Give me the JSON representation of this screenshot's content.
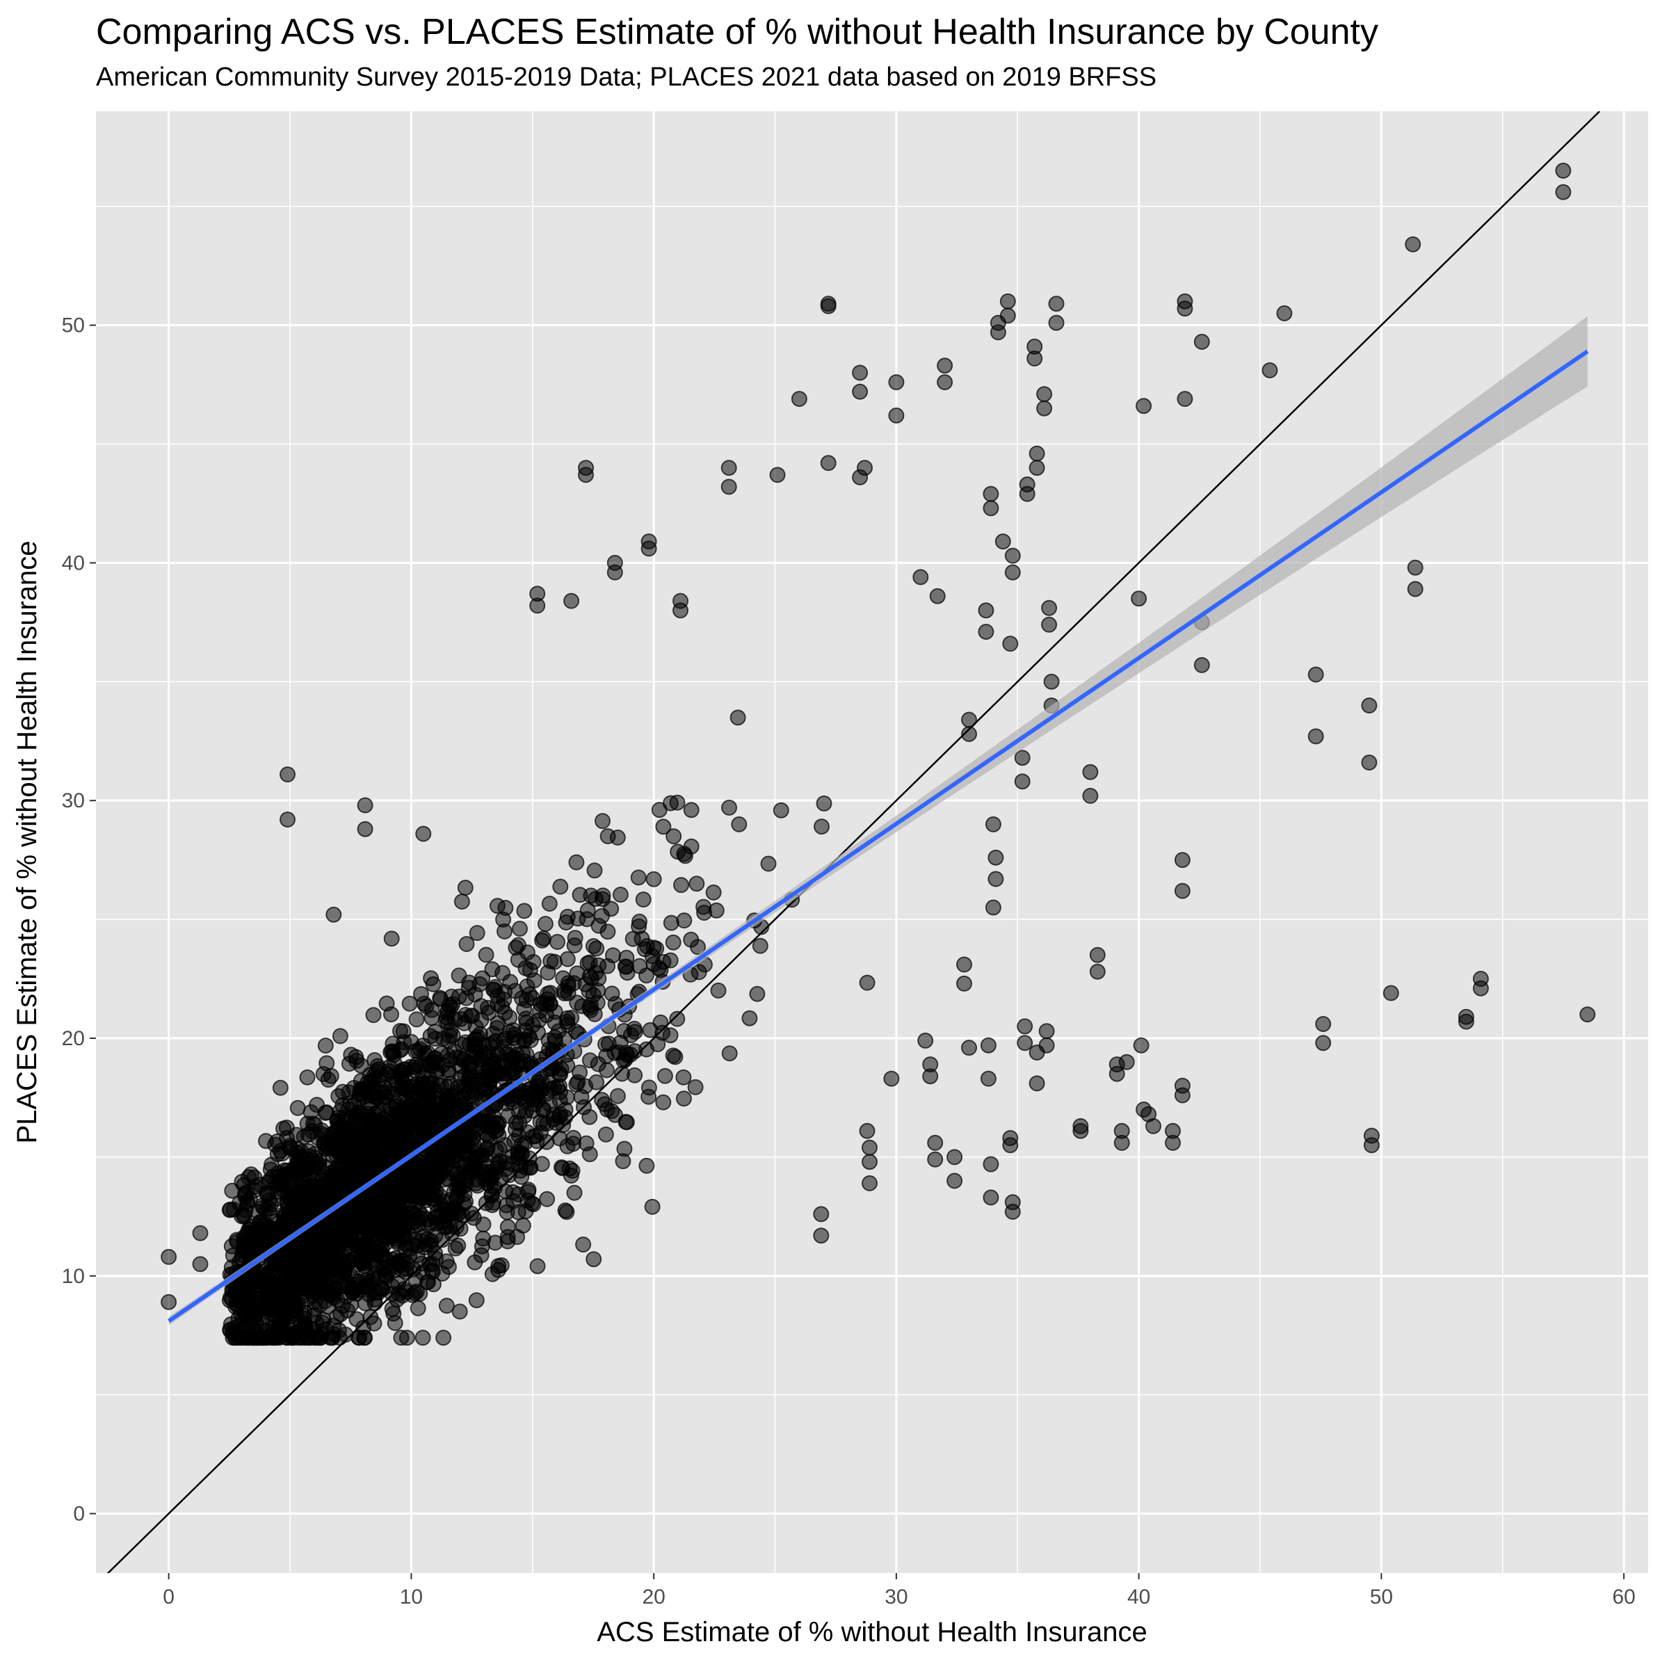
{
  "chart_data": {
    "type": "scatter",
    "title": "Comparing ACS vs. PLACES Estimate of % without Health Insurance by County",
    "subtitle": "American Community Survey 2015-2019 Data; PLACES 2021 data based on 2019 BRFSS",
    "xlabel": "ACS Estimate of % without Health Insurance",
    "ylabel": "PLACES Estimate of % without Health Insurance",
    "xlim": [
      -3,
      61
    ],
    "ylim": [
      -2.5,
      59
    ],
    "xticks": [
      0,
      10,
      20,
      30,
      40,
      50,
      60
    ],
    "yticks": [
      0,
      10,
      20,
      30,
      40,
      50
    ],
    "grid": true,
    "background_color": "#e5e5e5",
    "grid_color": "#ffffff",
    "point_color": "#000000",
    "point_alpha": 0.5,
    "reference_line": {
      "type": "identity",
      "slope": 1,
      "intercept": 0,
      "color": "#000000"
    },
    "fit_line": {
      "type": "linear",
      "x": [
        0,
        58.5
      ],
      "y": [
        8.1,
        48.9
      ],
      "color": "#3366ff",
      "ci_color": "#b3b3b3"
    },
    "cluster": {
      "n": 2800,
      "x_range": [
        2.5,
        33
      ],
      "slope": 0.75,
      "intercept": 7.4,
      "spread": 3.2
    },
    "outliers": [
      [
        57.5,
        56.5
      ],
      [
        57.5,
        55.6
      ],
      [
        51.3,
        53.4
      ],
      [
        45.4,
        48.1
      ],
      [
        46.0,
        50.5
      ],
      [
        42.6,
        49.3
      ],
      [
        41.9,
        51.0
      ],
      [
        41.9,
        50.7
      ],
      [
        41.9,
        46.9
      ],
      [
        40.2,
        46.6
      ],
      [
        42.6,
        37.5
      ],
      [
        42.6,
        35.7
      ],
      [
        40.0,
        38.5
      ],
      [
        51.4,
        39.8
      ],
      [
        51.4,
        38.9
      ],
      [
        47.3,
        35.3
      ],
      [
        47.3,
        32.7
      ],
      [
        49.5,
        34.0
      ],
      [
        49.5,
        31.6
      ],
      [
        58.5,
        21.0
      ],
      [
        54.1,
        22.5
      ],
      [
        54.1,
        22.1
      ],
      [
        53.5,
        20.9
      ],
      [
        53.5,
        20.7
      ],
      [
        50.4,
        21.9
      ],
      [
        47.6,
        20.6
      ],
      [
        47.6,
        19.8
      ],
      [
        49.6,
        15.9
      ],
      [
        49.6,
        15.5
      ],
      [
        41.8,
        27.5
      ],
      [
        41.8,
        26.2
      ],
      [
        40.1,
        19.7
      ],
      [
        39.1,
        18.9
      ],
      [
        39.1,
        18.5
      ],
      [
        39.5,
        19.0
      ],
      [
        40.2,
        17.0
      ],
      [
        40.4,
        16.8
      ],
      [
        40.6,
        16.3
      ],
      [
        41.4,
        16.1
      ],
      [
        41.4,
        15.6
      ],
      [
        41.8,
        17.6
      ],
      [
        41.8,
        18.0
      ],
      [
        39.3,
        16.1
      ],
      [
        39.3,
        15.6
      ],
      [
        37.6,
        16.3
      ],
      [
        37.6,
        16.1
      ],
      [
        38.3,
        23.5
      ],
      [
        38.3,
        22.8
      ],
      [
        38.0,
        31.2
      ],
      [
        38.0,
        30.2
      ],
      [
        34.6,
        51.0
      ],
      [
        34.6,
        50.4
      ],
      [
        34.2,
        50.1
      ],
      [
        34.2,
        49.7
      ],
      [
        36.6,
        50.9
      ],
      [
        36.6,
        50.1
      ],
      [
        35.7,
        49.1
      ],
      [
        35.7,
        48.6
      ],
      [
        36.1,
        47.1
      ],
      [
        36.1,
        46.5
      ],
      [
        35.8,
        44.6
      ],
      [
        35.8,
        44.0
      ],
      [
        35.4,
        43.3
      ],
      [
        35.4,
        42.9
      ],
      [
        33.9,
        42.9
      ],
      [
        33.9,
        42.3
      ],
      [
        34.4,
        40.9
      ],
      [
        34.8,
        40.3
      ],
      [
        34.8,
        39.6
      ],
      [
        36.3,
        38.1
      ],
      [
        36.3,
        37.4
      ],
      [
        33.7,
        38.0
      ],
      [
        33.7,
        37.1
      ],
      [
        34.7,
        36.6
      ],
      [
        36.4,
        35.0
      ],
      [
        36.4,
        34.0
      ],
      [
        33.0,
        33.4
      ],
      [
        33.0,
        32.8
      ],
      [
        35.2,
        31.8
      ],
      [
        35.2,
        30.8
      ],
      [
        34.1,
        27.6
      ],
      [
        34.1,
        26.7
      ],
      [
        34.0,
        25.5
      ],
      [
        34.0,
        29.0
      ],
      [
        32.8,
        23.1
      ],
      [
        32.8,
        22.3
      ],
      [
        33.0,
        19.6
      ],
      [
        33.8,
        19.7
      ],
      [
        33.8,
        18.3
      ],
      [
        35.3,
        20.5
      ],
      [
        35.3,
        19.8
      ],
      [
        35.8,
        19.4
      ],
      [
        35.8,
        18.1
      ],
      [
        36.2,
        20.3
      ],
      [
        36.2,
        19.7
      ],
      [
        34.7,
        15.8
      ],
      [
        34.7,
        15.5
      ],
      [
        34.8,
        13.1
      ],
      [
        34.8,
        12.7
      ],
      [
        33.9,
        13.3
      ],
      [
        33.9,
        14.7
      ],
      [
        32.4,
        15.0
      ],
      [
        32.4,
        14.0
      ],
      [
        31.6,
        15.6
      ],
      [
        31.6,
        14.9
      ],
      [
        31.2,
        19.9
      ],
      [
        31.4,
        18.9
      ],
      [
        31.4,
        18.4
      ],
      [
        31.0,
        39.4
      ],
      [
        31.7,
        38.6
      ],
      [
        32.0,
        48.3
      ],
      [
        32.0,
        47.6
      ],
      [
        30.0,
        47.6
      ],
      [
        30.0,
        46.2
      ],
      [
        28.5,
        48.0
      ],
      [
        28.5,
        47.2
      ],
      [
        27.2,
        50.9
      ],
      [
        27.2,
        50.8
      ],
      [
        26.0,
        46.9
      ],
      [
        27.2,
        44.2
      ],
      [
        28.7,
        44.0
      ],
      [
        28.5,
        43.6
      ],
      [
        17.2,
        44.0
      ],
      [
        17.2,
        43.7
      ],
      [
        25.1,
        43.7
      ],
      [
        23.1,
        44.0
      ],
      [
        23.1,
        43.2
      ],
      [
        19.8,
        40.9
      ],
      [
        19.8,
        40.6
      ],
      [
        18.4,
        40.0
      ],
      [
        18.4,
        39.6
      ],
      [
        15.2,
        38.7
      ],
      [
        15.2,
        38.2
      ],
      [
        16.6,
        38.4
      ],
      [
        21.1,
        38.4
      ],
      [
        21.1,
        38.0
      ],
      [
        4.9,
        31.1
      ],
      [
        4.9,
        29.2
      ],
      [
        8.1,
        29.8
      ],
      [
        8.1,
        28.8
      ],
      [
        6.8,
        25.2
      ],
      [
        10.5,
        28.6
      ],
      [
        0.0,
        10.8
      ],
      [
        0.0,
        8.9
      ],
      [
        1.3,
        11.8
      ],
      [
        1.3,
        10.5
      ],
      [
        28.8,
        16.1
      ],
      [
        28.9,
        15.4
      ],
      [
        28.9,
        14.8
      ],
      [
        28.9,
        13.9
      ],
      [
        29.8,
        18.3
      ],
      [
        26.9,
        12.6
      ],
      [
        26.9,
        11.7
      ]
    ]
  }
}
